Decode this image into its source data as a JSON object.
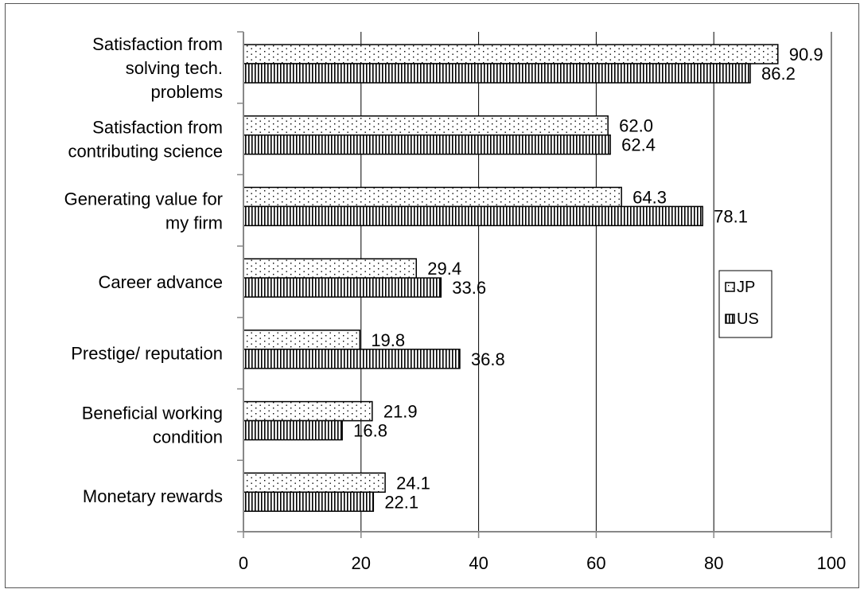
{
  "chart_data": {
    "type": "bar",
    "orientation": "horizontal",
    "categories": [
      [
        "Satisfaction from",
        "solving tech.",
        "problems"
      ],
      [
        "Satisfaction from",
        "contributing science"
      ],
      [
        "Generating value for",
        "my firm"
      ],
      [
        "Career advance"
      ],
      [
        "Prestige/ reputation"
      ],
      [
        "Beneficial working",
        "condition"
      ],
      [
        "Monetary rewards"
      ]
    ],
    "series": [
      {
        "name": "JP",
        "values": [
          90.9,
          62.0,
          64.3,
          29.4,
          19.8,
          21.9,
          24.1
        ],
        "labels": [
          "90.9",
          "62.0",
          "64.3",
          "29.4",
          "19.8",
          "21.9",
          "24.1"
        ],
        "pattern": "dots"
      },
      {
        "name": "US",
        "values": [
          86.2,
          62.4,
          78.1,
          33.6,
          36.8,
          16.8,
          22.1
        ],
        "labels": [
          "86.2",
          "62.4",
          "78.1",
          "33.6",
          "36.8",
          "16.8",
          "22.1"
        ],
        "pattern": "vertical-stripes"
      }
    ],
    "xlim": [
      0,
      100
    ],
    "xticks": [
      0,
      20,
      40,
      60,
      80,
      100
    ],
    "xtick_labels": [
      "0",
      "20",
      "40",
      "60",
      "80",
      "100"
    ],
    "grid": "vertical",
    "legend_position": "right",
    "title": "",
    "xlabel": "",
    "ylabel": "",
    "colors": {
      "bar_stroke": "#000000",
      "grid": "#000000",
      "axis": "#888888",
      "background": "#ffffff"
    }
  }
}
